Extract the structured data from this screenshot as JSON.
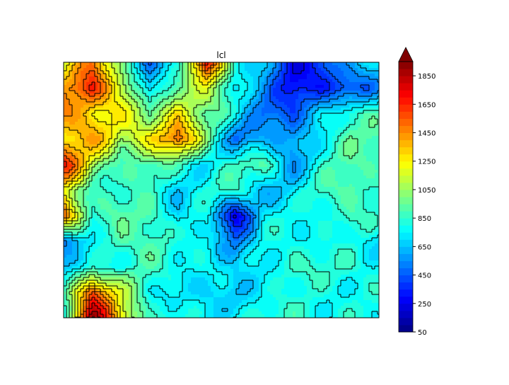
{
  "chart_data": {
    "type": "contour",
    "title": "lcl",
    "xlabel": "",
    "ylabel": "",
    "colormap": "jet",
    "levels": {
      "min": 50,
      "max": 1950,
      "step": 50
    },
    "colorbar": {
      "ticks": [
        50,
        250,
        450,
        650,
        850,
        1050,
        1250,
        1450,
        1650,
        1850
      ],
      "extend": "max",
      "extend_color": "#800000"
    },
    "field_estimate_rows_top_to_bottom": [
      [
        1100,
        1500,
        1000,
        500,
        700,
        1800,
        800,
        600,
        300,
        400,
        600,
        700
      ],
      [
        1400,
        1700,
        1200,
        600,
        1000,
        1200,
        700,
        600,
        300,
        300,
        400,
        600
      ],
      [
        1500,
        1300,
        1200,
        1000,
        1300,
        900,
        800,
        500,
        400,
        700,
        900,
        850
      ],
      [
        1300,
        1400,
        1100,
        1300,
        1500,
        1000,
        500,
        600,
        550,
        800,
        900,
        900
      ],
      [
        1700,
        1100,
        900,
        900,
        850,
        750,
        850,
        900,
        600,
        800,
        900,
        900
      ],
      [
        1200,
        900,
        800,
        850,
        700,
        800,
        850,
        650,
        700,
        850,
        950,
        850
      ],
      [
        1600,
        800,
        900,
        950,
        700,
        750,
        250,
        750,
        750,
        800,
        900,
        800
      ],
      [
        500,
        700,
        950,
        900,
        750,
        800,
        500,
        750,
        800,
        800,
        750,
        700
      ],
      [
        600,
        850,
        800,
        850,
        800,
        800,
        650,
        750,
        900,
        800,
        850,
        800
      ],
      [
        900,
        1600,
        1100,
        800,
        750,
        650,
        650,
        800,
        750,
        800,
        800,
        800
      ],
      [
        800,
        1900,
        1300,
        850,
        800,
        700,
        800,
        800,
        850,
        800,
        800,
        750
      ]
    ]
  }
}
